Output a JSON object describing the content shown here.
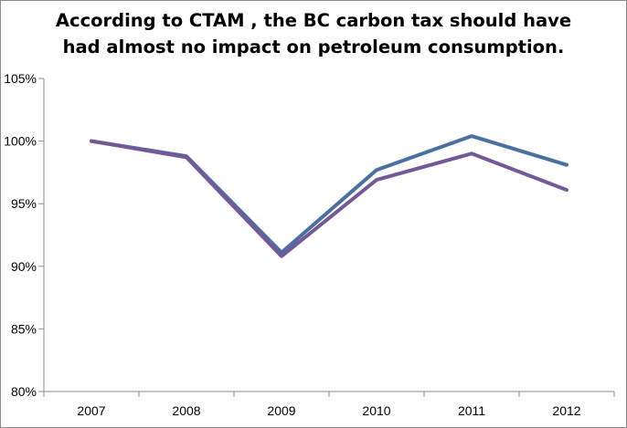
{
  "chart_data": {
    "type": "line",
    "title_lines": [
      "According to CTAM , the BC carbon tax should have",
      "had almost no impact on petroleum consumption."
    ],
    "xlabel": "",
    "ylabel": "",
    "categories": [
      "2007",
      "2008",
      "2009",
      "2010",
      "2011",
      "2012"
    ],
    "ylim": [
      80,
      105
    ],
    "yticks": [
      80,
      85,
      90,
      95,
      100,
      105
    ],
    "ytick_labels": [
      "80%",
      "85%",
      "90%",
      "95%",
      "100%",
      "105%"
    ],
    "grid": false,
    "legend": "none",
    "series": [
      {
        "color": "#4a6fa1",
        "values": [
          100,
          98.8,
          91.1,
          97.7,
          100.4,
          98.1
        ]
      },
      {
        "color": "#735997",
        "values": [
          100,
          98.7,
          90.8,
          96.9,
          99.0,
          96.1
        ]
      }
    ]
  }
}
